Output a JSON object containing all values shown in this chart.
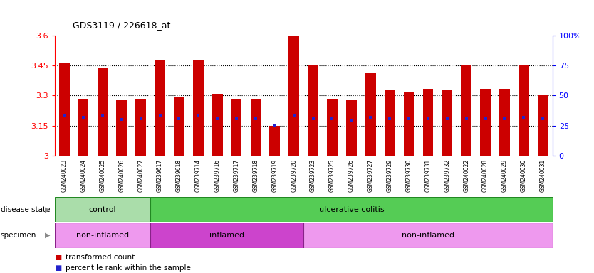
{
  "title": "GDS3119 / 226618_at",
  "samples": [
    "GSM240023",
    "GSM240024",
    "GSM240025",
    "GSM240026",
    "GSM240027",
    "GSM239617",
    "GSM239618",
    "GSM239714",
    "GSM239716",
    "GSM239717",
    "GSM239718",
    "GSM239719",
    "GSM239720",
    "GSM239723",
    "GSM239725",
    "GSM239726",
    "GSM239727",
    "GSM239729",
    "GSM239730",
    "GSM239731",
    "GSM239732",
    "GSM240022",
    "GSM240028",
    "GSM240029",
    "GSM240030",
    "GSM240031"
  ],
  "bar_values": [
    3.465,
    3.285,
    3.44,
    3.275,
    3.285,
    3.475,
    3.295,
    3.475,
    3.31,
    3.285,
    3.285,
    3.15,
    3.6,
    3.455,
    3.285,
    3.275,
    3.415,
    3.325,
    3.315,
    3.335,
    3.33,
    3.455,
    3.335,
    3.335,
    3.45,
    3.3
  ],
  "percentile_values": [
    3.2,
    3.19,
    3.2,
    3.18,
    3.185,
    3.2,
    3.185,
    3.2,
    3.185,
    3.185,
    3.185,
    3.15,
    3.2,
    3.185,
    3.185,
    3.175,
    3.19,
    3.185,
    3.185,
    3.185,
    3.185,
    3.185,
    3.185,
    3.185,
    3.19,
    3.185
  ],
  "bar_color": "#cc0000",
  "percentile_color": "#2222cc",
  "ymin": 3.0,
  "ymax": 3.6,
  "yticks": [
    3.0,
    3.15,
    3.3,
    3.45,
    3.6
  ],
  "ytick_labels": [
    "3",
    "3.15",
    "3.3",
    "3.45",
    "3.6"
  ],
  "y2ticks": [
    0,
    25,
    50,
    75,
    100
  ],
  "y2tick_labels": [
    "0",
    "25",
    "50",
    "75",
    "100%"
  ],
  "grid_values": [
    3.15,
    3.3,
    3.45
  ],
  "disease_state_groups": [
    {
      "label": "control",
      "start": 0,
      "end": 5,
      "color": "#aaddaa"
    },
    {
      "label": "ulcerative colitis",
      "start": 5,
      "end": 26,
      "color": "#55cc55"
    }
  ],
  "specimen_groups": [
    {
      "label": "non-inflamed",
      "start": 0,
      "end": 5,
      "color": "#ee99ee"
    },
    {
      "label": "inflamed",
      "start": 5,
      "end": 13,
      "color": "#cc44cc"
    },
    {
      "label": "non-inflamed",
      "start": 13,
      "end": 26,
      "color": "#ee99ee"
    }
  ],
  "disease_state_label": "disease state",
  "specimen_label": "specimen",
  "legend_items": [
    {
      "label": "transformed count",
      "color": "#cc0000"
    },
    {
      "label": "percentile rank within the sample",
      "color": "#2222cc"
    }
  ],
  "bar_width": 0.55,
  "xtick_bg": "#d8d8d8"
}
